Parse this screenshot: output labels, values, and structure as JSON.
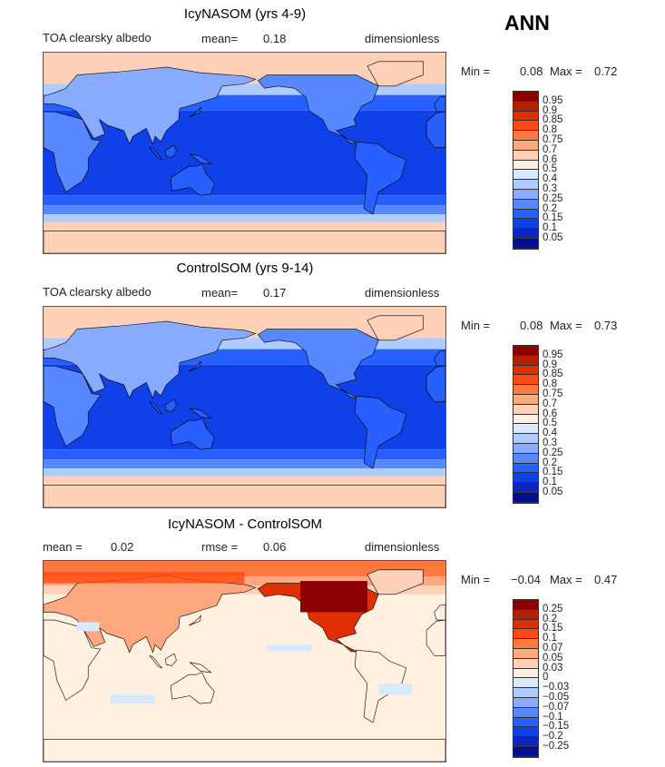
{
  "season": "ANN",
  "panels": [
    {
      "title": "IcyNASOM (yrs 4-9)",
      "variable": "TOA clearsky albedo",
      "stat1_label": "mean=",
      "stat1_value": "0.18",
      "units": "dimensionless",
      "min_label": "Min =",
      "min_value": "0.08",
      "max_label": "Max =",
      "max_value": "0.72",
      "colorbar_labels": [
        "0.95",
        "0.9",
        "0.85",
        "0.8",
        "0.75",
        "0.7",
        "0.6",
        "0.5",
        "0.4",
        "0.3",
        "0.25",
        "0.2",
        "0.15",
        "0.1",
        "0.05"
      ]
    },
    {
      "title": "ControlSOM (yrs 9-14)",
      "variable": "TOA clearsky albedo",
      "stat1_label": "mean=",
      "stat1_value": "0.17",
      "units": "dimensionless",
      "min_label": "Min =",
      "min_value": "0.08",
      "max_label": "Max =",
      "max_value": "0.73",
      "colorbar_labels": [
        "0.95",
        "0.9",
        "0.85",
        "0.8",
        "0.75",
        "0.7",
        "0.6",
        "0.5",
        "0.4",
        "0.3",
        "0.25",
        "0.2",
        "0.15",
        "0.1",
        "0.05"
      ]
    },
    {
      "title": "IcyNASOM - ControlSOM",
      "stat1_label": "mean =",
      "stat1_value": "0.02",
      "stat2_label": "rmse =",
      "stat2_value": "0.06",
      "units": "dimensionless",
      "min_label": "Min =",
      "min_value": "−0.04",
      "max_label": "Max =",
      "max_value": "0.47",
      "colorbar_labels": [
        "0.25",
        "0.2",
        "0.15",
        "0.1",
        "0.07",
        "0.05",
        "0.03",
        "0",
        "−0.03",
        "−0.05",
        "−0.07",
        "−0.1",
        "−0.15",
        "−0.2",
        "−0.25"
      ]
    }
  ],
  "colorbar_colors": [
    "#8b0000",
    "#b22000",
    "#e03000",
    "#ff4a10",
    "#ff7840",
    "#ffa880",
    "#ffd0b8",
    "#fff0e0",
    "#d8eaff",
    "#b0ccff",
    "#88aaff",
    "#5888ff",
    "#2860ff",
    "#1040e8",
    "#0828c0",
    "#001090"
  ]
}
